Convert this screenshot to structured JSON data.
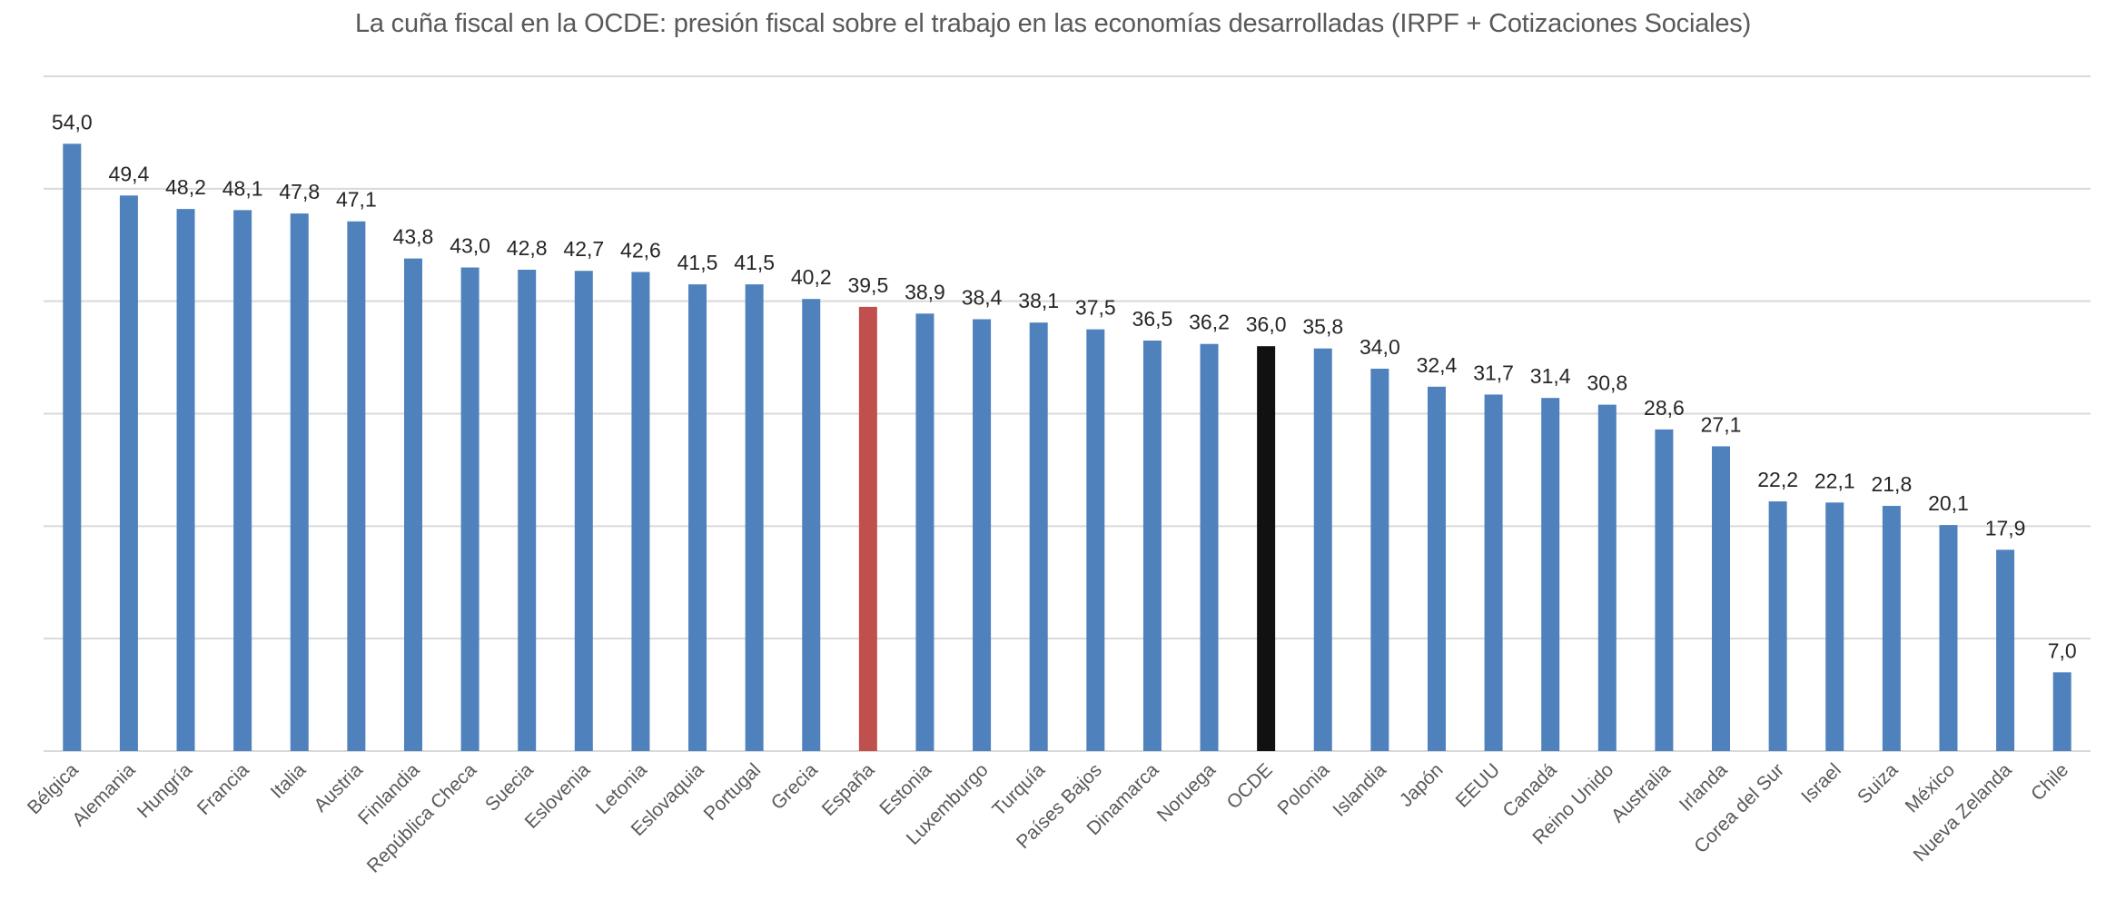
{
  "chart_data": {
    "type": "bar",
    "title": "La cuña fiscal en la OCDE: presión fiscal sobre el trabajo en las economías desarrolladas (IRPF + Cotizaciones Sociales)",
    "xlabel": "",
    "ylabel": "",
    "ylim": [
      0,
      60
    ],
    "y_gridlines": [
      0,
      10,
      20,
      30,
      40,
      50,
      60
    ],
    "y_tick_labels_shown": false,
    "grid": true,
    "legend": "none",
    "decimal_separator": ",",
    "categories": [
      "Bélgica",
      "Alemania",
      "Hungría",
      "Francia",
      "Italia",
      "Austria",
      "Finlandia",
      "República Checa",
      "Suecia",
      "Eslovenia",
      "Letonia",
      "Eslovaquia",
      "Portugal",
      "Grecia",
      "España",
      "Estonia",
      "Luxemburgo",
      "Turquía",
      "Países Bajos",
      "Dinamarca",
      "Noruega",
      "OCDE",
      "Polonia",
      "Islandia",
      "Japón",
      "EEUU",
      "Canadá",
      "Reino Unido",
      "Australia",
      "Irlanda",
      "Corea del Sur",
      "Israel",
      "Suiza",
      "México",
      "Nueva Zelanda",
      "Chile"
    ],
    "values": [
      54.0,
      49.4,
      48.2,
      48.1,
      47.8,
      47.1,
      43.8,
      43.0,
      42.8,
      42.7,
      42.6,
      41.5,
      41.5,
      40.2,
      39.5,
      38.9,
      38.4,
      38.1,
      37.5,
      36.5,
      36.2,
      36.0,
      35.8,
      34.0,
      32.4,
      31.7,
      31.4,
      30.8,
      28.6,
      27.1,
      22.2,
      22.1,
      21.8,
      20.1,
      17.9,
      7.0
    ],
    "data_labels": [
      "54,0",
      "49,4",
      "48,2",
      "48,1",
      "47,8",
      "47,1",
      "43,8",
      "43,0",
      "42,8",
      "42,7",
      "42,6",
      "41,5",
      "41,5",
      "40,2",
      "39,5",
      "38,9",
      "38,4",
      "38,1",
      "37,5",
      "36,5",
      "36,2",
      "36,0",
      "35,8",
      "34,0",
      "32,4",
      "31,7",
      "31,4",
      "30,8",
      "28,6",
      "27,1",
      "22,2",
      "22,1",
      "21,8",
      "20,1",
      "17,9",
      "7,0"
    ],
    "colors": {
      "default": "#4F81BD",
      "highlight": {
        "España": "#C0504D",
        "OCDE": "#111111"
      },
      "grid": "#D9D9D9",
      "title": "#595959",
      "data_label": "#262626",
      "category_label": "#595959"
    }
  }
}
